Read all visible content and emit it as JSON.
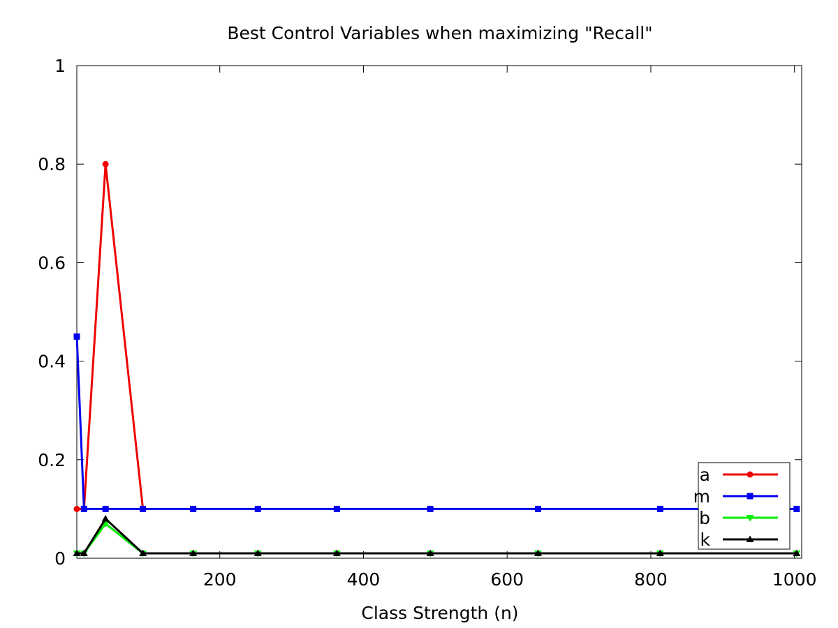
{
  "chart_data": {
    "type": "line",
    "title": "Best Control Variables when maximizing \"Recall\"",
    "xlabel": "Class Strength (n)",
    "ylabel": "",
    "xlim": [
      1,
      1010
    ],
    "ylim": [
      0,
      1
    ],
    "xticks": [
      200,
      400,
      600,
      800,
      1000
    ],
    "yticks": [
      0,
      0.2,
      0.4,
      0.6,
      0.8,
      1
    ],
    "ytick_labels": [
      "0",
      "0.2",
      "0.4",
      "0.6",
      "0.8",
      "1"
    ],
    "xtick_labels": [
      "200",
      "400",
      "600",
      "800",
      "1000"
    ],
    "grid": false,
    "legend_position": "bottom-right",
    "x": [
      1,
      11,
      41,
      93,
      163,
      253,
      363,
      493,
      643,
      813,
      1003
    ],
    "series": [
      {
        "name": "a",
        "color": "#ee0000",
        "marker": "circle",
        "values": [
          0.1,
          0.1,
          0.8,
          0.1,
          null,
          null,
          null,
          null,
          null,
          null,
          null
        ]
      },
      {
        "name": "m",
        "color": "#0000ee",
        "marker": "square",
        "values": [
          0.45,
          0.1,
          0.1,
          0.1,
          0.1,
          0.1,
          0.1,
          0.1,
          0.1,
          0.1,
          0.1
        ]
      },
      {
        "name": "b",
        "color": "#00ee00",
        "marker": "triangle-down",
        "values": [
          0.01,
          0.01,
          0.07,
          0.01,
          0.01,
          0.01,
          0.01,
          0.01,
          0.01,
          0.01,
          0.01
        ]
      },
      {
        "name": "k",
        "color": "#000000",
        "marker": "triangle-up",
        "values": [
          0.01,
          0.01,
          0.08,
          0.01,
          0.01,
          0.01,
          0.01,
          0.01,
          0.01,
          0.01,
          0.01
        ]
      }
    ]
  }
}
